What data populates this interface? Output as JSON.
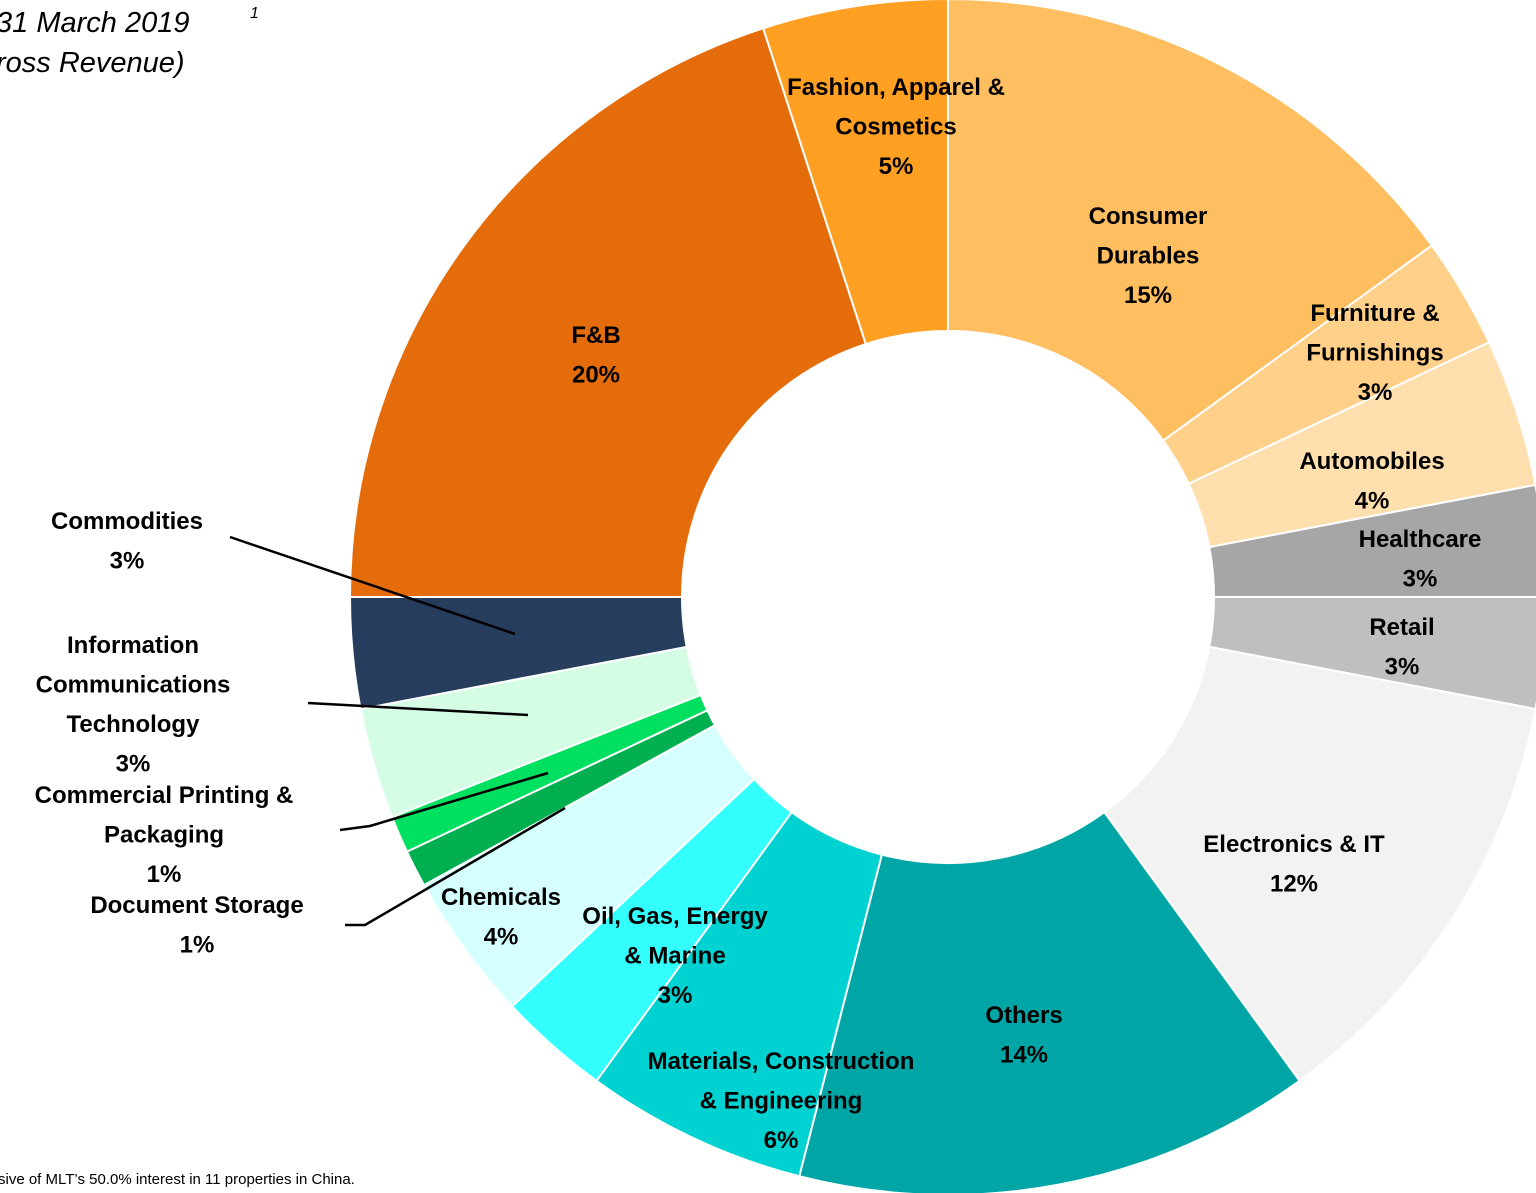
{
  "chart_data": {
    "type": "donut",
    "title": "31 March 2019",
    "title_superscript": "1",
    "subtitle": "ross Revenue)",
    "footnote": "sive of MLT’s 50.0% interest in 11 properties in China.",
    "categories": [
      "Consumer Durables",
      "Furniture & Furnishings",
      "Automobiles",
      "Healthcare",
      "Retail",
      "Electronics & IT",
      "Others",
      "Materials, Construction & Engineering",
      "Oil, Gas, Energy & Marine",
      "Chemicals",
      "Document Storage",
      "Commercial Printing & Packaging",
      "Information Communications Technology",
      "Commodities",
      "F&B",
      "Fashion, Apparel & Cosmetics"
    ],
    "values": [
      15,
      3,
      4,
      3,
      3,
      12,
      14,
      6,
      3,
      4,
      1,
      1,
      3,
      3,
      20,
      5
    ],
    "value_labels": [
      "15%",
      "3%",
      "4%",
      "3%",
      "3%",
      "12%",
      "14%",
      "6%",
      "3%",
      "4%",
      "1%",
      "1%",
      "3%",
      "3%",
      "20%",
      "5%"
    ],
    "colors": [
      "#ffbe5f",
      "#ffd08a",
      "#ffdfad",
      "#a6a6a6",
      "#bfbfbf",
      "#f2f2f2",
      "#00a6a6",
      "#00d2d2",
      "#33ffff",
      "#d6ffff",
      "#00b050",
      "#00e060",
      "#d5fde5",
      "#263d5e",
      "#e46c0a",
      "#ffa023"
    ]
  }
}
